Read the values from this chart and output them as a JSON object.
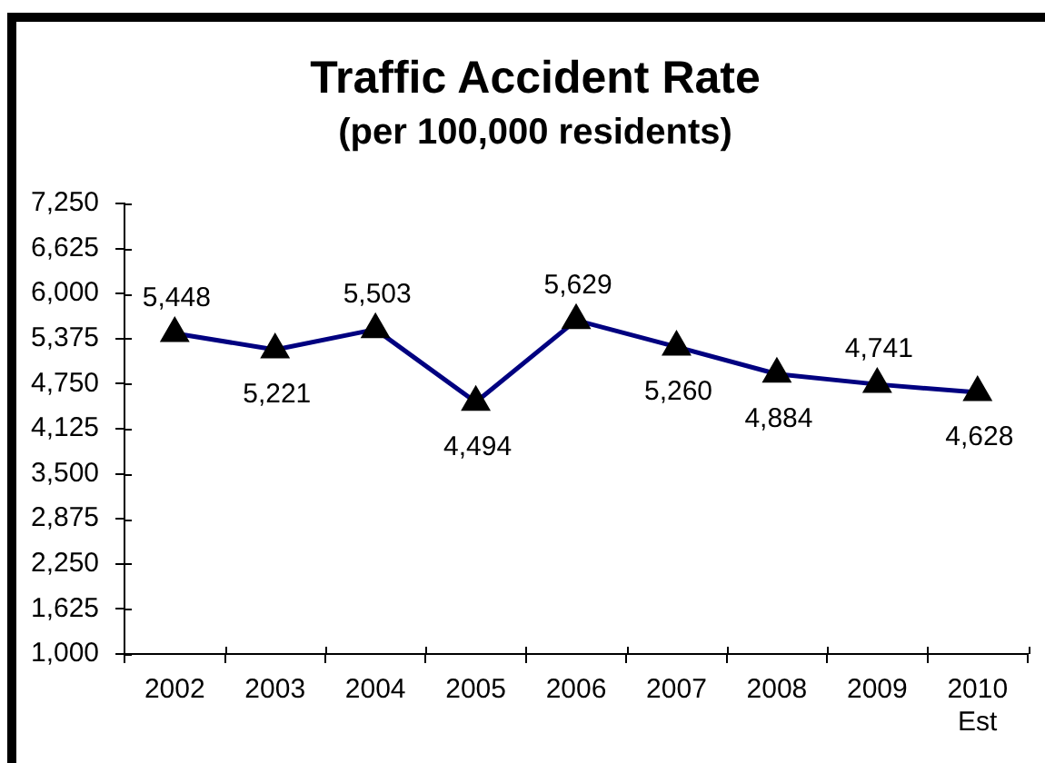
{
  "chart_data": {
    "type": "line",
    "title": "Traffic Accident Rate",
    "subtitle": "(per 100,000 residents)",
    "categories": [
      "2002",
      "2003",
      "2004",
      "2005",
      "2006",
      "2007",
      "2008",
      "2009",
      "2010\nEst"
    ],
    "series": [
      {
        "color": "#000080",
        "colors": [
          "#000000",
          "#000000",
          "#000000",
          "#000000",
          "#000000",
          "#000000",
          "#000000",
          "#000000",
          "#000000"
        ],
        "values": [
          5448,
          5221,
          5503,
          4494,
          5629,
          5260,
          4884,
          4741,
          4628
        ],
        "value_labels": [
          "5,448",
          "5,221",
          "5,503",
          "4,494",
          "5,629",
          "5,260",
          "4,884",
          "4,741",
          "4,628"
        ]
      }
    ],
    "ylim": [
      1000,
      7250
    ],
    "yticks": [
      {
        "value": 1000,
        "label": "1,000"
      },
      {
        "value": 1625,
        "label": "1,625"
      },
      {
        "value": 2250,
        "label": "2,250"
      },
      {
        "value": 2875,
        "label": "2,875"
      },
      {
        "value": 3500,
        "label": "3,500"
      },
      {
        "value": 4125,
        "label": "4,125"
      },
      {
        "value": 4750,
        "label": "4,750"
      },
      {
        "value": 5375,
        "label": "5,375"
      },
      {
        "value": 6000,
        "label": "6,000"
      },
      {
        "value": 6625,
        "label": "6,625"
      },
      {
        "value": 7250,
        "label": "7,250"
      }
    ],
    "marker": "triangle",
    "line_style": "solid"
  }
}
